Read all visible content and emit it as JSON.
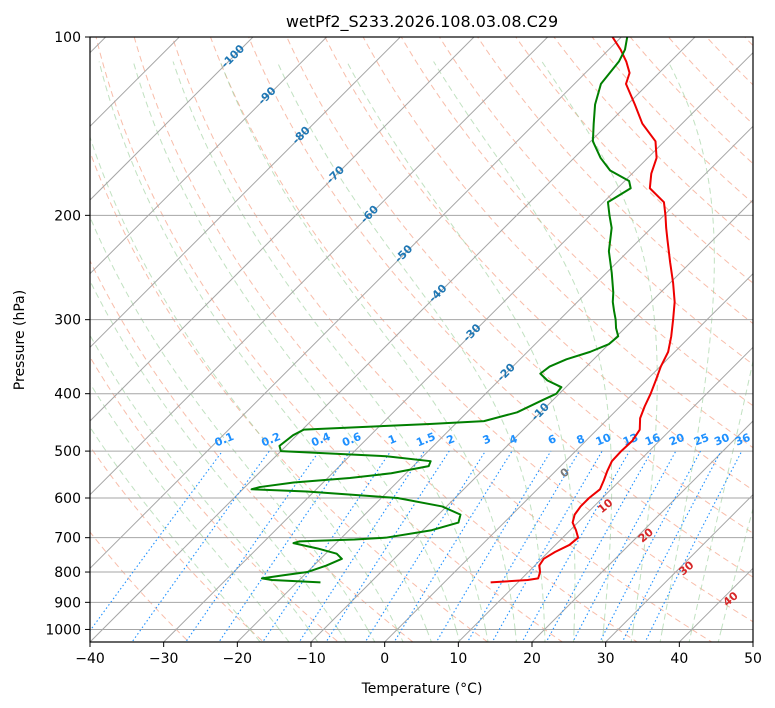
{
  "chart_data": {
    "type": "line",
    "subtype": "skew-t log-p",
    "title": "wetPf2_S233.2026.108.03.08.C29",
    "xlabel": "Temperature (°C)",
    "ylabel": "Pressure (hPa)",
    "xlim": [
      -40,
      50
    ],
    "ylim": [
      1050,
      100
    ],
    "x_ticks": [
      -40,
      -30,
      -20,
      -10,
      0,
      10,
      20,
      30,
      40,
      50
    ],
    "x_tick_labels": [
      "−40",
      "−30",
      "−20",
      "−10",
      "0",
      "10",
      "20",
      "30",
      "40",
      "50"
    ],
    "y_ticks": [
      100,
      200,
      300,
      400,
      500,
      600,
      700,
      800,
      900,
      1000
    ],
    "y_tick_labels": [
      "100",
      "200",
      "300",
      "400",
      "500",
      "600",
      "700",
      "800",
      "900",
      "1000"
    ],
    "isotherm_labels": [
      {
        "temp": -100,
        "text": "-100"
      },
      {
        "temp": -90,
        "text": "-90"
      },
      {
        "temp": -80,
        "text": "-80"
      },
      {
        "temp": -70,
        "text": "-70"
      },
      {
        "temp": -60,
        "text": "-60"
      },
      {
        "temp": -50,
        "text": "-50"
      },
      {
        "temp": -40,
        "text": "-40"
      },
      {
        "temp": -30,
        "text": "-30"
      },
      {
        "temp": -20,
        "text": "-20"
      },
      {
        "temp": -10,
        "text": "-10"
      }
    ],
    "mixing_ratio_labels": [
      "0.1",
      "0.2",
      "0.4",
      "0.6",
      "1",
      "1.5",
      "2",
      "3",
      "4",
      "6",
      "8",
      "10",
      "13",
      "16",
      "20",
      "25",
      "30",
      "36"
    ],
    "mixing_ratios": [
      0.1,
      0.2,
      0.4,
      0.6,
      1,
      1.5,
      2,
      3,
      4,
      6,
      8,
      10,
      13,
      16,
      20,
      25,
      30,
      36
    ],
    "dry_adiabat_labels": [
      {
        "text": "10",
        "temp": 30,
        "pressure": 620
      },
      {
        "text": "20",
        "temp": 35.5,
        "pressure": 695
      },
      {
        "text": "30",
        "temp": 41,
        "pressure": 790
      },
      {
        "text": "40",
        "temp": 47,
        "pressure": 890
      }
    ],
    "moist_adiabat_labels": [
      {
        "text": "0",
        "temp": 24.5,
        "pressure": 545
      }
    ],
    "series": [
      {
        "name": "Temperature",
        "color": "#ee0000",
        "points": [
          [
            833,
            6.3
          ],
          [
            825,
            11
          ],
          [
            820,
            12.2
          ],
          [
            800,
            11.6
          ],
          [
            780,
            10.6
          ],
          [
            760,
            10.3
          ],
          [
            740,
            10.9
          ],
          [
            720,
            11.9
          ],
          [
            700,
            12.1
          ],
          [
            680,
            10.8
          ],
          [
            660,
            9.3
          ],
          [
            640,
            8.5
          ],
          [
            620,
            8.2
          ],
          [
            600,
            8.2
          ],
          [
            580,
            8.5
          ],
          [
            560,
            7.8
          ],
          [
            540,
            7.0
          ],
          [
            520,
            6.3
          ],
          [
            500,
            6.2
          ],
          [
            480,
            6.3
          ],
          [
            460,
            5.8
          ],
          [
            440,
            4.3
          ],
          [
            420,
            3.3
          ],
          [
            400,
            2.4
          ],
          [
            380,
            1.3
          ],
          [
            360,
            0.1
          ],
          [
            340,
            -0.9
          ],
          [
            320,
            -2.6
          ],
          [
            300,
            -4.6
          ],
          [
            280,
            -6.8
          ],
          [
            260,
            -9.6
          ],
          [
            240,
            -12.8
          ],
          [
            220,
            -16.2
          ],
          [
            210,
            -18.0
          ],
          [
            200,
            -19.8
          ],
          [
            190,
            -21.8
          ],
          [
            180,
            -25.6
          ],
          [
            170,
            -27.4
          ],
          [
            160,
            -28.8
          ],
          [
            150,
            -31.2
          ],
          [
            140,
            -35.4
          ],
          [
            130,
            -39.0
          ],
          [
            120,
            -43.0
          ],
          [
            115,
            -44.0
          ],
          [
            110,
            -46.0
          ],
          [
            105,
            -48.4
          ],
          [
            100,
            -51.2
          ]
        ]
      },
      {
        "name": "Dewpoint",
        "color": "#007f00",
        "points": [
          [
            833,
            -16.8
          ],
          [
            825,
            -23.7
          ],
          [
            820,
            -25.3
          ],
          [
            810,
            -22.8
          ],
          [
            800,
            -20.0
          ],
          [
            780,
            -18.3
          ],
          [
            760,
            -17.1
          ],
          [
            745,
            -18.5
          ],
          [
            730,
            -21.8
          ],
          [
            715,
            -25.8
          ],
          [
            710,
            -25.2
          ],
          [
            705,
            -18.0
          ],
          [
            700,
            -14.0
          ],
          [
            680,
            -8.8
          ],
          [
            660,
            -6.2
          ],
          [
            640,
            -7.0
          ],
          [
            620,
            -10.6
          ],
          [
            600,
            -17.8
          ],
          [
            585,
            -31.0
          ],
          [
            580,
            -38.8
          ],
          [
            575,
            -38.0
          ],
          [
            565,
            -34.0
          ],
          [
            555,
            -27.0
          ],
          [
            545,
            -22.0
          ],
          [
            530,
            -17.9
          ],
          [
            520,
            -18.3
          ],
          [
            510,
            -25.0
          ],
          [
            500,
            -40.0
          ],
          [
            490,
            -40.9
          ],
          [
            470,
            -40.5
          ],
          [
            460,
            -39.8
          ],
          [
            450,
            -23.5
          ],
          [
            445,
            -16.5
          ],
          [
            430,
            -13.2
          ],
          [
            410,
            -11.4
          ],
          [
            400,
            -10.4
          ],
          [
            390,
            -10.6
          ],
          [
            380,
            -13.4
          ],
          [
            370,
            -15.3
          ],
          [
            360,
            -15.0
          ],
          [
            350,
            -13.7
          ],
          [
            340,
            -11.5
          ],
          [
            330,
            -10.0
          ],
          [
            320,
            -9.8
          ],
          [
            310,
            -11.2
          ],
          [
            300,
            -12.4
          ],
          [
            290,
            -13.8
          ],
          [
            280,
            -15.2
          ],
          [
            270,
            -16.4
          ],
          [
            250,
            -19.3
          ],
          [
            230,
            -22.6
          ],
          [
            210,
            -25.4
          ],
          [
            200,
            -27.4
          ],
          [
            190,
            -29.4
          ],
          [
            180,
            -28.2
          ],
          [
            175,
            -29.4
          ],
          [
            168,
            -33.4
          ],
          [
            160,
            -36.4
          ],
          [
            150,
            -39.7
          ],
          [
            140,
            -42.0
          ],
          [
            130,
            -44.4
          ],
          [
            120,
            -46.4
          ],
          [
            110,
            -47.0
          ],
          [
            105,
            -47.8
          ],
          [
            100,
            -49.2
          ]
        ]
      }
    ]
  }
}
